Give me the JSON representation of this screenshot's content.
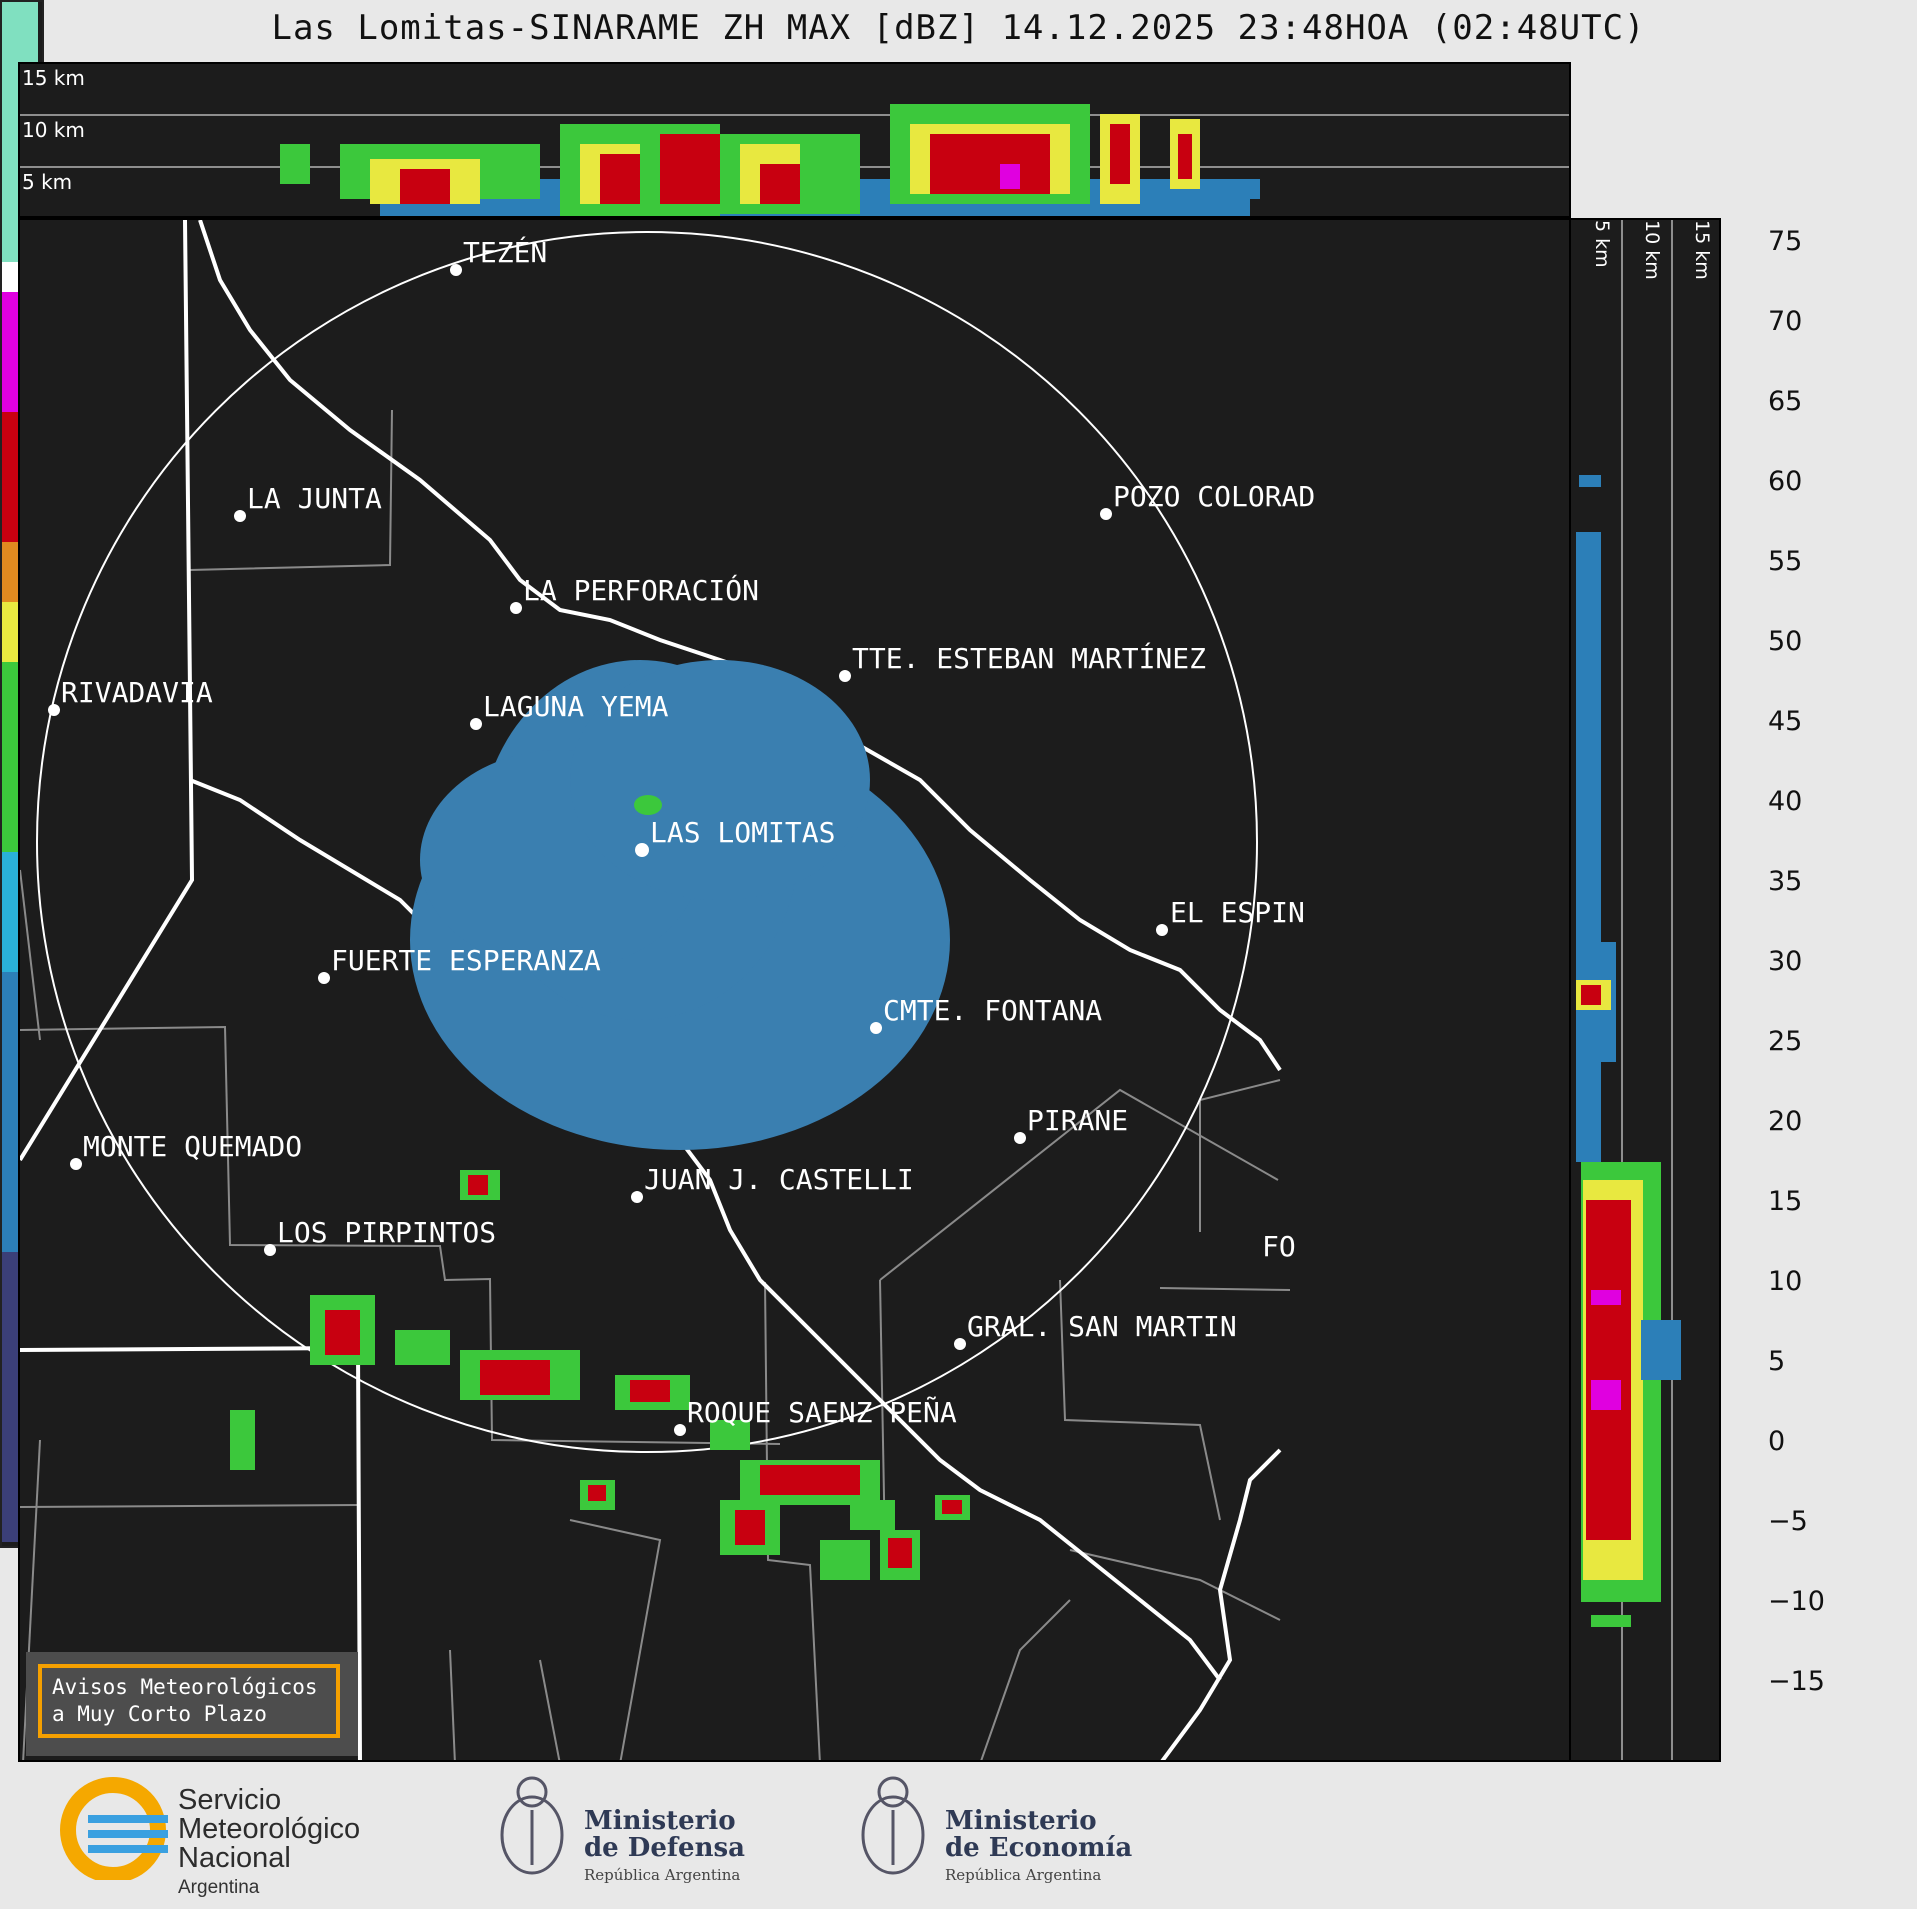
{
  "title": "Las Lomitas-SINARAME ZH MAX [dBZ] 14.12.2025 23:48HOA (02:48UTC)",
  "top_panel": {
    "height_labels": [
      "15 km",
      "10 km",
      "5 km"
    ]
  },
  "side_panel": {
    "height_labels": [
      "5 km",
      "10 km",
      "15 km"
    ]
  },
  "map": {
    "places": [
      {
        "name": "TEZÉN"
      },
      {
        "name": "LA JUNTA"
      },
      {
        "name": "POZO COLORAD"
      },
      {
        "name": "LA PERFORACIÓN"
      },
      {
        "name": "TTE. ESTEBAN MARTÍNEZ"
      },
      {
        "name": "RIVADAVIA"
      },
      {
        "name": "LAGUNA YEMA"
      },
      {
        "name": "LAS LOMITAS"
      },
      {
        "name": "EL ESPIN"
      },
      {
        "name": "FUERTE ESPERANZA"
      },
      {
        "name": "CMTE. FONTANA"
      },
      {
        "name": "PIRANE"
      },
      {
        "name": "MONTE QUEMADO"
      },
      {
        "name": "JUAN J. CASTELLI"
      },
      {
        "name": "LOS PIRPINTOS"
      },
      {
        "name": "GRAL. SAN MARTIN"
      },
      {
        "name": "ROQUE SAENZ PEÑA"
      },
      {
        "name": "FO"
      }
    ]
  },
  "colorbar": {
    "unit": "dBZ",
    "ticks": [
      "75",
      "70",
      "65",
      "60",
      "55",
      "50",
      "45",
      "40",
      "35",
      "30",
      "25",
      "20",
      "15",
      "10",
      "5",
      "0",
      "−5",
      "−10",
      "−15"
    ],
    "colors": {
      "low": "#3b3f78",
      "blue": "#2c7fb8",
      "cyan": "#2ab0d8",
      "green": "#3cc83c",
      "yellow": "#e8e840",
      "orange": "#e08a20",
      "red": "#c80010",
      "magenta": "#e000e0",
      "white": "#ffffff",
      "mint": "#80e0c0"
    }
  },
  "warning": {
    "line1": "Avisos Meteorológicos",
    "line2": "a Muy Corto Plazo"
  },
  "logos": {
    "smn": {
      "line1": "Servicio",
      "line2": "Meteorológico",
      "line3": "Nacional",
      "line4": "Argentina"
    },
    "defensa": {
      "line1": "Ministerio",
      "line2": "de Defensa",
      "line3": "República Argentina"
    },
    "economia": {
      "line1": "Ministerio",
      "line2": "de Economía",
      "line3": "República Argentina"
    }
  }
}
